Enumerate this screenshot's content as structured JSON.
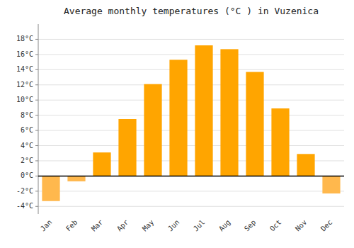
{
  "chart_data": {
    "type": "bar",
    "title": "Average monthly temperatures (°C ) in Vuzenica",
    "categories": [
      "Jan",
      "Feb",
      "Mar",
      "Apr",
      "May",
      "Jun",
      "Jul",
      "Aug",
      "Sep",
      "Oct",
      "Nov",
      "Dec"
    ],
    "values": [
      -3.3,
      -0.7,
      3.1,
      7.5,
      12.1,
      15.3,
      17.2,
      16.7,
      13.7,
      8.9,
      2.9,
      -2.3
    ],
    "colors": [
      "#FFB84D",
      "#FFB84D",
      "#FFA500",
      "#FFA500",
      "#FFA500",
      "#FFA500",
      "#FFA500",
      "#FFA500",
      "#FFA500",
      "#FFA500",
      "#FFA500",
      "#FFB84D"
    ],
    "ylim": [
      -5,
      20
    ],
    "yticks": [
      {
        "value": -4,
        "label": "-4°C"
      },
      {
        "value": -2,
        "label": "-2°C"
      },
      {
        "value": 0,
        "label": "0°C"
      },
      {
        "value": 2,
        "label": "2°C"
      },
      {
        "value": 4,
        "label": "4°C"
      },
      {
        "value": 6,
        "label": "6°C"
      },
      {
        "value": 8,
        "label": "8°C"
      },
      {
        "value": 10,
        "label": "10°C"
      },
      {
        "value": 12,
        "label": "12°C"
      },
      {
        "value": 14,
        "label": "14°C"
      },
      {
        "value": 16,
        "label": "16°C"
      },
      {
        "value": 18,
        "label": "18°C"
      }
    ],
    "grid": true
  }
}
